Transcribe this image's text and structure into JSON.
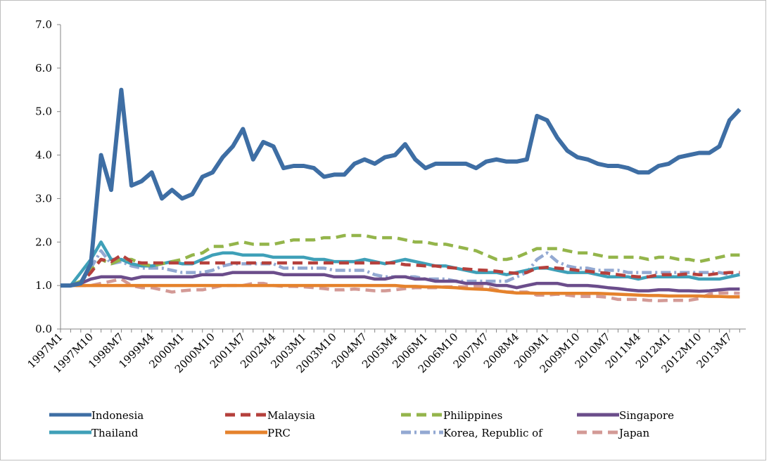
{
  "chart_data": {
    "type": "line",
    "categories": [
      "1997M1",
      null,
      null,
      "1997M10",
      null,
      null,
      "1998M7",
      null,
      null,
      "1999M4",
      null,
      null,
      "2000M1",
      null,
      null,
      "2000M10",
      null,
      null,
      "2001M7",
      null,
      null,
      "2002M4",
      null,
      null,
      "2003M1",
      null,
      null,
      "2003M10",
      null,
      null,
      "2004M7",
      null,
      null,
      "2005M4",
      null,
      null,
      "2006M1",
      null,
      null,
      "2006M10",
      null,
      null,
      "2007M7",
      null,
      null,
      "2008M4",
      null,
      null,
      "2009M1",
      null,
      null,
      "2009M10",
      null,
      null,
      "2010M7",
      null,
      null,
      "2011M4",
      null,
      null,
      "2012M1",
      null,
      null,
      "2012M10",
      null,
      null,
      "2013M7",
      null
    ],
    "ylim": [
      0,
      7
    ],
    "yticks": [
      {
        "value": 0,
        "label": "0.0"
      },
      {
        "value": 1,
        "label": "1.0"
      },
      {
        "value": 2,
        "label": "2.0"
      },
      {
        "value": 3,
        "label": "3.0"
      },
      {
        "value": 4,
        "label": "4.0"
      },
      {
        "value": 5,
        "label": "5.0"
      },
      {
        "value": 6,
        "label": "6.0"
      },
      {
        "value": 7,
        "label": "7.0"
      }
    ],
    "grid": false,
    "legend": "bottom",
    "series": [
      {
        "name": "Indonesia",
        "color": "#3e6ea4",
        "style": "solid",
        "values": [
          1.0,
          1.0,
          1.05,
          1.5,
          4.0,
          3.2,
          5.5,
          3.3,
          3.4,
          3.6,
          3.0,
          3.2,
          3.0,
          3.1,
          3.5,
          3.6,
          3.95,
          4.2,
          4.6,
          3.9,
          4.3,
          4.2,
          3.7,
          3.75,
          3.75,
          3.7,
          3.5,
          3.55,
          3.55,
          3.8,
          3.9,
          3.8,
          3.95,
          4.0,
          4.25,
          3.9,
          3.7,
          3.8,
          3.8,
          3.8,
          3.8,
          3.7,
          3.85,
          3.9,
          3.85,
          3.85,
          3.9,
          4.9,
          4.8,
          4.4,
          4.1,
          3.95,
          3.9,
          3.8,
          3.75,
          3.75,
          3.7,
          3.6,
          3.6,
          3.75,
          3.8,
          3.95,
          4.0,
          4.05,
          4.05,
          4.2,
          4.8,
          5.05
        ]
      },
      {
        "name": "Malaysia",
        "color": "#b5403c",
        "style": "dashed",
        "values": [
          1.0,
          1.0,
          1.05,
          1.3,
          1.6,
          1.55,
          1.7,
          1.55,
          1.52,
          1.52,
          1.52,
          1.52,
          1.52,
          1.52,
          1.52,
          1.52,
          1.52,
          1.52,
          1.52,
          1.52,
          1.52,
          1.52,
          1.52,
          1.52,
          1.52,
          1.52,
          1.52,
          1.52,
          1.52,
          1.52,
          1.52,
          1.52,
          1.52,
          1.52,
          1.48,
          1.47,
          1.45,
          1.45,
          1.42,
          1.4,
          1.38,
          1.36,
          1.35,
          1.33,
          1.3,
          1.28,
          1.3,
          1.4,
          1.42,
          1.4,
          1.38,
          1.35,
          1.33,
          1.3,
          1.28,
          1.25,
          1.22,
          1.2,
          1.2,
          1.25,
          1.25,
          1.25,
          1.27,
          1.25,
          1.25,
          1.28,
          1.3,
          1.3
        ]
      },
      {
        "name": "Philippines",
        "color": "#94b54b",
        "style": "dashed",
        "values": [
          1.0,
          1.0,
          1.1,
          1.35,
          1.6,
          1.5,
          1.6,
          1.6,
          1.5,
          1.45,
          1.5,
          1.55,
          1.6,
          1.7,
          1.75,
          1.9,
          1.9,
          1.95,
          2.0,
          1.95,
          1.95,
          1.95,
          2.0,
          2.05,
          2.05,
          2.05,
          2.1,
          2.1,
          2.15,
          2.15,
          2.15,
          2.1,
          2.1,
          2.1,
          2.05,
          2.0,
          2.0,
          1.95,
          1.95,
          1.9,
          1.85,
          1.8,
          1.7,
          1.6,
          1.6,
          1.65,
          1.75,
          1.85,
          1.85,
          1.85,
          1.8,
          1.75,
          1.75,
          1.7,
          1.65,
          1.65,
          1.65,
          1.65,
          1.6,
          1.65,
          1.65,
          1.6,
          1.6,
          1.55,
          1.6,
          1.65,
          1.7,
          1.7
        ]
      },
      {
        "name": "Singapore",
        "color": "#6b4d8b",
        "style": "solid",
        "values": [
          1.0,
          1.0,
          1.05,
          1.15,
          1.2,
          1.2,
          1.2,
          1.15,
          1.2,
          1.2,
          1.2,
          1.2,
          1.2,
          1.2,
          1.25,
          1.25,
          1.25,
          1.3,
          1.3,
          1.3,
          1.3,
          1.3,
          1.25,
          1.25,
          1.25,
          1.25,
          1.25,
          1.2,
          1.2,
          1.2,
          1.2,
          1.15,
          1.15,
          1.2,
          1.2,
          1.15,
          1.15,
          1.1,
          1.1,
          1.1,
          1.05,
          1.05,
          1.05,
          1.0,
          1.0,
          0.95,
          1.0,
          1.05,
          1.05,
          1.05,
          1.0,
          1.0,
          1.0,
          0.98,
          0.95,
          0.93,
          0.9,
          0.88,
          0.88,
          0.9,
          0.9,
          0.88,
          0.88,
          0.87,
          0.88,
          0.9,
          0.92,
          0.92
        ]
      },
      {
        "name": "Thailand",
        "color": "#3fa0b8",
        "style": "solid",
        "values": [
          1.0,
          1.0,
          1.3,
          1.6,
          2.0,
          1.6,
          1.6,
          1.5,
          1.45,
          1.45,
          1.5,
          1.55,
          1.5,
          1.5,
          1.6,
          1.7,
          1.75,
          1.75,
          1.7,
          1.7,
          1.7,
          1.65,
          1.65,
          1.65,
          1.65,
          1.6,
          1.6,
          1.55,
          1.55,
          1.55,
          1.6,
          1.55,
          1.5,
          1.55,
          1.6,
          1.55,
          1.5,
          1.45,
          1.45,
          1.4,
          1.35,
          1.3,
          1.3,
          1.3,
          1.25,
          1.3,
          1.35,
          1.4,
          1.4,
          1.35,
          1.3,
          1.3,
          1.3,
          1.25,
          1.2,
          1.2,
          1.2,
          1.15,
          1.2,
          1.2,
          1.2,
          1.2,
          1.2,
          1.15,
          1.15,
          1.15,
          1.2,
          1.25
        ]
      },
      {
        "name": "PRC",
        "color": "#e5822c",
        "style": "solid",
        "values": [
          1.0,
          1.0,
          1.0,
          1.0,
          1.0,
          1.0,
          1.0,
          1.0,
          1.0,
          1.0,
          1.0,
          1.0,
          1.0,
          1.0,
          1.0,
          1.0,
          1.0,
          1.0,
          1.0,
          1.0,
          1.0,
          1.0,
          1.0,
          1.0,
          1.0,
          1.0,
          1.0,
          1.0,
          1.0,
          1.0,
          1.0,
          1.0,
          1.0,
          1.0,
          0.98,
          0.98,
          0.97,
          0.97,
          0.96,
          0.95,
          0.93,
          0.92,
          0.91,
          0.88,
          0.85,
          0.83,
          0.83,
          0.82,
          0.82,
          0.82,
          0.82,
          0.82,
          0.82,
          0.82,
          0.81,
          0.8,
          0.79,
          0.78,
          0.77,
          0.77,
          0.76,
          0.76,
          0.76,
          0.76,
          0.75,
          0.75,
          0.74,
          0.74
        ]
      },
      {
        "name": "Korea, Republic of",
        "color": "#93a9d2",
        "style": "dash-dot",
        "values": [
          1.0,
          1.0,
          1.05,
          1.4,
          1.8,
          1.5,
          1.55,
          1.45,
          1.4,
          1.4,
          1.4,
          1.35,
          1.3,
          1.3,
          1.3,
          1.35,
          1.45,
          1.5,
          1.5,
          1.5,
          1.5,
          1.5,
          1.4,
          1.4,
          1.4,
          1.4,
          1.4,
          1.35,
          1.35,
          1.35,
          1.35,
          1.25,
          1.2,
          1.2,
          1.2,
          1.2,
          1.15,
          1.15,
          1.15,
          1.1,
          1.1,
          1.1,
          1.1,
          1.1,
          1.1,
          1.2,
          1.3,
          1.6,
          1.75,
          1.55,
          1.45,
          1.4,
          1.4,
          1.35,
          1.35,
          1.35,
          1.3,
          1.3,
          1.3,
          1.3,
          1.3,
          1.3,
          1.3,
          1.3,
          1.3,
          1.3,
          1.25,
          1.25
        ]
      },
      {
        "name": "Japan",
        "color": "#d39a96",
        "style": "dashed",
        "values": [
          1.0,
          1.0,
          1.0,
          1.0,
          1.05,
          1.1,
          1.15,
          1.0,
          0.95,
          0.95,
          0.9,
          0.85,
          0.88,
          0.9,
          0.9,
          0.95,
          1.0,
          1.0,
          1.0,
          1.05,
          1.05,
          1.0,
          0.98,
          0.98,
          0.97,
          0.95,
          0.93,
          0.9,
          0.9,
          0.92,
          0.9,
          0.88,
          0.88,
          0.9,
          0.93,
          0.95,
          0.95,
          0.95,
          0.97,
          0.97,
          0.97,
          0.98,
          0.97,
          0.9,
          0.85,
          0.85,
          0.85,
          0.78,
          0.78,
          0.8,
          0.78,
          0.75,
          0.75,
          0.75,
          0.73,
          0.68,
          0.68,
          0.68,
          0.66,
          0.65,
          0.66,
          0.66,
          0.66,
          0.7,
          0.8,
          0.83,
          0.83,
          0.82
        ]
      }
    ]
  }
}
